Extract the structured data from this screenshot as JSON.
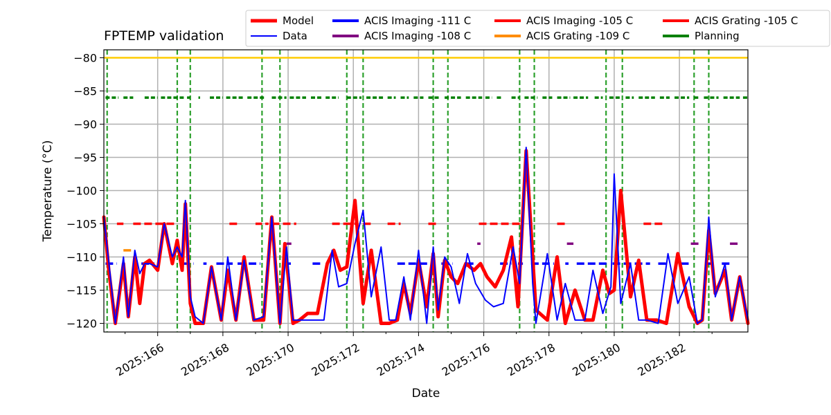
{
  "chart_data": {
    "type": "line",
    "title": "FPTEMP validation",
    "xlabel": "Date",
    "ylabel": "Temperature ($^\\circ$C)",
    "ylabel_display": "Temperature (°C)",
    "xlim": [
      164.35,
      184.1
    ],
    "ylim": [
      -121.3,
      -78.8
    ],
    "x_ticks": [
      166,
      168,
      170,
      172,
      174,
      176,
      178,
      180,
      182
    ],
    "x_tick_labels": [
      "2025:166",
      "2025:168",
      "2025:170",
      "2025:172",
      "2025:174",
      "2025:176",
      "2025:178",
      "2025:180",
      "2025:182"
    ],
    "y_ticks": [
      -120,
      -115,
      -110,
      -105,
      -100,
      -95,
      -90,
      -85,
      -80
    ],
    "y_tick_labels": [
      "−120",
      "−115",
      "−110",
      "−105",
      "−100",
      "−95",
      "−90",
      "−85",
      "−80"
    ],
    "grid": true,
    "legend_location": "upper-right, outside above axes",
    "legend": [
      {
        "label": "Model",
        "color": "#ff0000",
        "style": "thick"
      },
      {
        "label": "Data",
        "color": "#0000ff",
        "style": "thin"
      },
      {
        "label": "ACIS Imaging -111 C",
        "color": "#0000ff",
        "style": "thick"
      },
      {
        "label": "ACIS Imaging -108 C",
        "color": "#800080",
        "style": "thick"
      },
      {
        "label": "ACIS Imaging -105 C",
        "color": "#ff0000",
        "style": "thick"
      },
      {
        "label": "ACIS Grating -109 C",
        "color": "#ff8c00",
        "style": "thick"
      },
      {
        "label": "ACIS Grating -105 C",
        "color": "#ff0000",
        "style": "thick"
      },
      {
        "label": "Planning",
        "color": "#008000",
        "style": "thick"
      }
    ],
    "reference_lines": [
      {
        "name": "yellow-limit",
        "y": -80,
        "color": "#ffcc00"
      }
    ],
    "vertical_markers": [
      164.45,
      166.6,
      167.0,
      169.2,
      169.75,
      171.8,
      172.3,
      174.45,
      174.9,
      177.1,
      177.55,
      179.75,
      180.25,
      182.45,
      182.9
    ],
    "series": [
      {
        "name": "Model",
        "color": "#ff0000",
        "x": [
          164.35,
          164.5,
          164.7,
          164.95,
          165.1,
          165.3,
          165.45,
          165.6,
          165.75,
          166.0,
          166.2,
          166.45,
          166.6,
          166.75,
          166.85,
          167.0,
          167.15,
          167.4,
          167.65,
          167.95,
          168.15,
          168.4,
          168.65,
          168.95,
          169.25,
          169.5,
          169.75,
          169.9,
          170.15,
          170.35,
          170.6,
          170.9,
          171.2,
          171.4,
          171.6,
          171.8,
          172.05,
          172.3,
          172.55,
          172.85,
          173.1,
          173.35,
          173.55,
          173.75,
          174.0,
          174.25,
          174.45,
          174.6,
          174.8,
          175.0,
          175.2,
          175.45,
          175.7,
          175.9,
          176.1,
          176.35,
          176.6,
          176.85,
          177.05,
          177.3,
          177.6,
          177.95,
          178.25,
          178.5,
          178.8,
          179.1,
          179.35,
          179.65,
          179.85,
          180.0,
          180.2,
          180.5,
          180.75,
          181.0,
          181.3,
          181.6,
          181.95,
          182.3,
          182.55,
          182.7,
          182.9,
          183.1,
          183.4,
          183.6,
          183.85,
          184.1
        ],
        "y": [
          -104,
          -112,
          -120,
          -111,
          -119,
          -110,
          -117,
          -111,
          -110.5,
          -112,
          -105,
          -111,
          -107.5,
          -112,
          -102,
          -117,
          -120,
          -120,
          -111.5,
          -119.5,
          -112,
          -119.5,
          -110,
          -119.5,
          -119.5,
          -104,
          -120,
          -108,
          -120,
          -119.5,
          -118.5,
          -118.5,
          -111,
          -109,
          -112,
          -111.5,
          -101.5,
          -117,
          -109,
          -120,
          -120,
          -119.5,
          -114,
          -118.5,
          -110.5,
          -117.5,
          -109.5,
          -119,
          -110.5,
          -113,
          -114,
          -111,
          -112,
          -111,
          -113,
          -114.5,
          -112,
          -107,
          -117.5,
          -94,
          -118,
          -119.5,
          -110,
          -120,
          -115,
          -119.5,
          -119.5,
          -112,
          -115.5,
          -115,
          -100,
          -116,
          -110.5,
          -119.5,
          -119.5,
          -120,
          -109.5,
          -117.5,
          -120,
          -119.5,
          -106,
          -115.5,
          -112,
          -119.5,
          -113,
          -120
        ]
      },
      {
        "name": "Data",
        "color": "#0000ff",
        "x": [
          164.35,
          164.55,
          164.7,
          164.95,
          165.1,
          165.3,
          165.45,
          165.6,
          165.75,
          166.0,
          166.2,
          166.45,
          166.6,
          166.75,
          166.85,
          167.0,
          167.15,
          167.4,
          167.65,
          167.95,
          168.15,
          168.4,
          168.65,
          168.95,
          169.25,
          169.5,
          169.75,
          169.95,
          170.15,
          170.4,
          170.8,
          171.1,
          171.35,
          171.55,
          171.8,
          172.05,
          172.3,
          172.55,
          172.85,
          173.1,
          173.3,
          173.55,
          173.75,
          174.0,
          174.25,
          174.45,
          174.6,
          174.8,
          175.0,
          175.25,
          175.5,
          175.75,
          176.05,
          176.3,
          176.6,
          176.9,
          177.1,
          177.3,
          177.5,
          177.6,
          177.95,
          178.25,
          178.5,
          178.8,
          179.1,
          179.35,
          179.65,
          179.9,
          180.0,
          180.2,
          180.5,
          180.75,
          181.0,
          181.35,
          181.65,
          181.95,
          182.3,
          182.55,
          182.7,
          182.9,
          183.1,
          183.4,
          183.6,
          183.85,
          184.1
        ],
        "y": [
          -104,
          -113,
          -120,
          -110,
          -119,
          -109,
          -112.5,
          -111,
          -111,
          -111.5,
          -105,
          -110,
          -108.5,
          -110,
          -101.5,
          -116,
          -119,
          -120,
          -111.5,
          -119.5,
          -110,
          -119.5,
          -110.5,
          -119.5,
          -119,
          -104,
          -120,
          -108.5,
          -119.5,
          -119.5,
          -119.5,
          -119.5,
          -109,
          -114.5,
          -114,
          -108,
          -103,
          -116,
          -108.5,
          -119.5,
          -119.5,
          -113,
          -119.5,
          -109,
          -120,
          -108.5,
          -118,
          -110,
          -111.5,
          -117,
          -109.5,
          -114,
          -116.5,
          -117.5,
          -117,
          -108.5,
          -114,
          -93.5,
          -114,
          -120,
          -109.5,
          -119.5,
          -114,
          -119.5,
          -119.5,
          -112,
          -118.5,
          -114.5,
          -97.5,
          -117,
          -111,
          -119.5,
          -119.5,
          -120,
          -109.5,
          -117,
          -113,
          -120,
          -119.5,
          -104,
          -116,
          -111,
          -119.5,
          -113,
          -119.5
        ]
      }
    ],
    "bands": [
      {
        "name": "ACIS Imaging -111 C",
        "color": "#0000ff",
        "y": -111,
        "segments": [
          [
            164.4,
            164.75
          ],
          [
            165.5,
            165.9
          ],
          [
            166.75,
            167.1
          ],
          [
            167.4,
            167.5
          ],
          [
            167.8,
            168.3
          ],
          [
            168.45,
            169.15
          ],
          [
            169.85,
            170.1
          ],
          [
            170.75,
            171.05
          ],
          [
            173.35,
            174.35
          ],
          [
            174.7,
            175.05
          ],
          [
            175.45,
            175.75
          ],
          [
            176.5,
            176.85
          ],
          [
            177.05,
            177.2
          ],
          [
            177.45,
            178.15
          ],
          [
            178.5,
            178.6
          ],
          [
            178.85,
            179.85
          ],
          [
            179.95,
            181.1
          ],
          [
            181.35,
            181.6
          ],
          [
            182.05,
            182.3
          ],
          [
            182.8,
            183.05
          ],
          [
            183.3,
            183.6
          ]
        ]
      },
      {
        "name": "ACIS Imaging -108 C",
        "color": "#800080",
        "y": -108,
        "segments": [
          [
            169.95,
            170.1
          ],
          [
            175.8,
            175.9
          ],
          [
            178.55,
            178.75
          ],
          [
            182.35,
            182.65
          ],
          [
            183.55,
            183.85
          ]
        ]
      },
      {
        "name": "ACIS Imaging -105 C",
        "color": "#ff0000",
        "y": -105,
        "segments": [
          [
            164.75,
            164.95
          ],
          [
            165.25,
            166.6
          ],
          [
            168.2,
            168.45
          ],
          [
            169.0,
            169.2
          ],
          [
            169.3,
            169.4
          ],
          [
            169.5,
            170.25
          ],
          [
            171.35,
            172.1
          ],
          [
            172.3,
            172.55
          ],
          [
            173.05,
            173.45
          ],
          [
            174.3,
            174.6
          ],
          [
            175.85,
            177.15
          ],
          [
            178.25,
            178.55
          ],
          [
            180.9,
            181.5
          ]
        ]
      },
      {
        "name": "ACIS Grating -109 C",
        "color": "#ff8c00",
        "y": -109,
        "segments": [
          [
            164.95,
            165.2
          ]
        ]
      },
      {
        "name": "Planning",
        "color": "#008000",
        "y": -86,
        "segments": [
          [
            164.4,
            164.8
          ],
          [
            164.95,
            165.25
          ],
          [
            165.6,
            166.0
          ],
          [
            166.1,
            166.8
          ],
          [
            166.9,
            167.0
          ],
          [
            167.25,
            167.3
          ],
          [
            167.6,
            168.0
          ],
          [
            168.1,
            168.65
          ],
          [
            168.75,
            169.3
          ],
          [
            169.5,
            169.95
          ],
          [
            170.05,
            170.55
          ],
          [
            170.7,
            171.05
          ],
          [
            171.15,
            171.55
          ],
          [
            171.8,
            172.25
          ],
          [
            172.4,
            172.95
          ],
          [
            173.05,
            173.3
          ],
          [
            173.45,
            173.7
          ],
          [
            173.85,
            174.15
          ],
          [
            174.3,
            174.65
          ],
          [
            174.8,
            175.3
          ],
          [
            175.45,
            175.95
          ],
          [
            176.05,
            176.25
          ],
          [
            176.4,
            176.55
          ],
          [
            176.85,
            177.1
          ],
          [
            177.25,
            177.65
          ],
          [
            177.8,
            178.1
          ],
          [
            178.25,
            178.65
          ],
          [
            178.75,
            179.2
          ],
          [
            179.4,
            179.65
          ],
          [
            179.85,
            180.2
          ],
          [
            180.35,
            180.6
          ],
          [
            180.75,
            181.25
          ],
          [
            181.4,
            181.7
          ],
          [
            181.85,
            182.3
          ],
          [
            182.45,
            182.6
          ],
          [
            182.75,
            183.2
          ],
          [
            183.35,
            183.85
          ],
          [
            183.95,
            184.1
          ]
        ]
      }
    ]
  }
}
